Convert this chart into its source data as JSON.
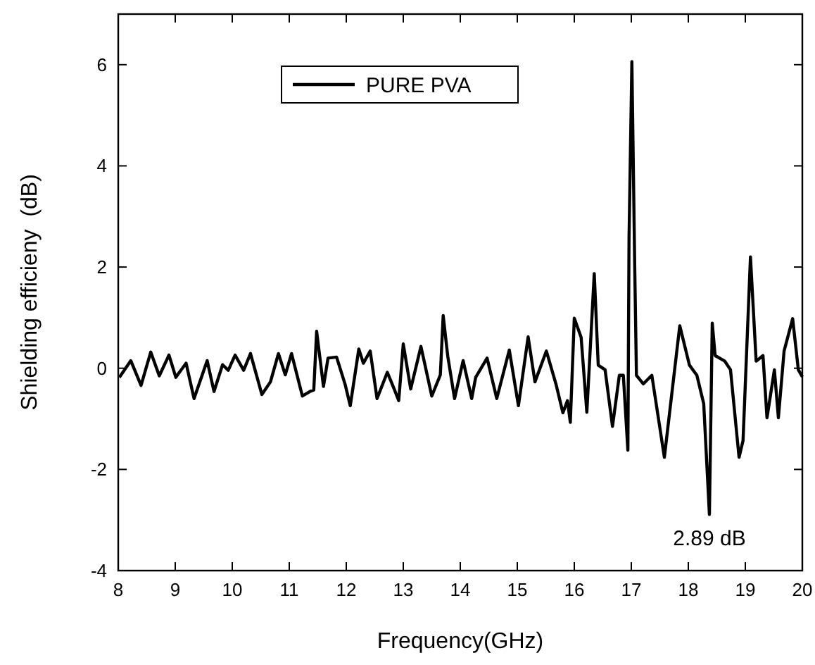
{
  "chart_data": {
    "type": "line",
    "xlabel": "Frequency(GHz)",
    "ylabel": "Shielding efficieny  (dB)",
    "xlim": [
      8,
      20
    ],
    "xticks": [
      8,
      9,
      10,
      11,
      12,
      13,
      14,
      15,
      16,
      17,
      18,
      19,
      20
    ],
    "ylim": [
      -4,
      7
    ],
    "yticks": [
      -4,
      -2,
      0,
      2,
      4,
      6
    ],
    "legend": "top left",
    "grid": false,
    "line_style": "solid",
    "marker": "none",
    "annotations": [
      {
        "text": "2.89 dB",
        "x": 18.37,
        "y": -2.89
      }
    ],
    "series": [
      {
        "name": "PURE PVA",
        "color": "#000000",
        "x": [
          8.02,
          8.22,
          8.4,
          8.57,
          8.72,
          8.89,
          9.01,
          9.19,
          9.33,
          9.56,
          9.68,
          9.83,
          9.93,
          10.05,
          10.2,
          10.32,
          10.52,
          10.67,
          10.81,
          10.93,
          11.04,
          11.23,
          11.36,
          11.43,
          11.48,
          11.6,
          11.68,
          11.83,
          11.98,
          12.07,
          12.22,
          12.3,
          12.42,
          12.54,
          12.72,
          12.84,
          12.92,
          13.0,
          13.13,
          13.31,
          13.5,
          13.65,
          13.7,
          13.78,
          13.9,
          14.05,
          14.2,
          14.27,
          14.47,
          14.64,
          14.86,
          15.02,
          15.19,
          15.31,
          15.51,
          15.68,
          15.8,
          15.88,
          15.93,
          16.0,
          16.12,
          16.22,
          16.35,
          16.42,
          16.54,
          16.67,
          16.79,
          16.86,
          16.94,
          16.96,
          17.01,
          17.06,
          17.09,
          17.21,
          17.36,
          17.58,
          17.85,
          18.02,
          18.15,
          18.27,
          18.37,
          18.42,
          18.47,
          18.64,
          18.74,
          18.89,
          18.96,
          19.09,
          19.19,
          19.31,
          19.38,
          19.51,
          19.58,
          19.68,
          19.83,
          19.93,
          20.0
        ],
        "values": [
          -0.18,
          0.15,
          -0.34,
          0.32,
          -0.15,
          0.26,
          -0.18,
          0.1,
          -0.6,
          0.15,
          -0.46,
          0.07,
          -0.04,
          0.26,
          -0.04,
          0.29,
          -0.52,
          -0.27,
          0.29,
          -0.13,
          0.29,
          -0.55,
          -0.46,
          -0.43,
          0.73,
          -0.36,
          0.2,
          0.22,
          -0.32,
          -0.74,
          0.38,
          0.1,
          0.34,
          -0.6,
          -0.08,
          -0.41,
          -0.64,
          0.48,
          -0.41,
          0.43,
          -0.55,
          -0.13,
          1.04,
          0.24,
          -0.6,
          0.15,
          -0.6,
          -0.18,
          0.2,
          -0.6,
          0.36,
          -0.74,
          0.62,
          -0.27,
          0.34,
          -0.32,
          -0.88,
          -0.64,
          -1.07,
          0.99,
          0.61,
          -0.87,
          1.87,
          0.06,
          -0.03,
          -1.15,
          -0.14,
          -0.14,
          -1.62,
          2.57,
          6.06,
          2.0,
          -0.14,
          -0.31,
          -0.14,
          -1.76,
          0.84,
          0.06,
          -0.14,
          -0.7,
          -2.89,
          0.89,
          0.25,
          0.14,
          -0.03,
          -1.76,
          -1.43,
          2.2,
          0.14,
          0.25,
          -0.98,
          -0.03,
          -0.98,
          0.34,
          0.98,
          -0.03,
          -0.17
        ]
      }
    ]
  }
}
